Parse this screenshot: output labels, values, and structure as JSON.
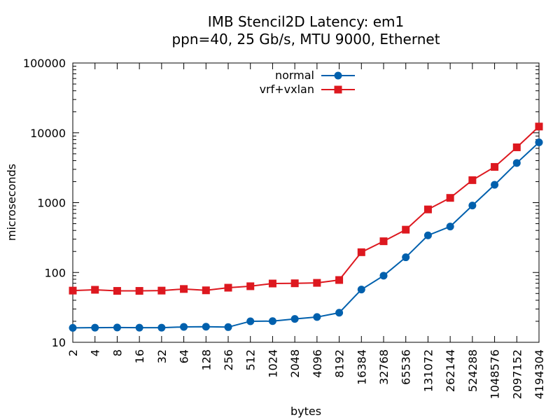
{
  "chart_data": {
    "type": "line",
    "title": "IMB Stencil2D Latency: em1",
    "subtitle": "ppn=40, 25 Gb/s, MTU 9000, Ethernet",
    "xlabel": "bytes",
    "ylabel": "microseconds",
    "xscale": "log",
    "yscale": "log",
    "xlim": [
      2,
      4194304
    ],
    "ylim": [
      10,
      100000
    ],
    "grid": false,
    "legend_position": "top-center",
    "x": [
      2,
      4,
      8,
      16,
      32,
      64,
      128,
      256,
      512,
      1024,
      2048,
      4096,
      8192,
      16384,
      32768,
      65536,
      131072,
      262144,
      524288,
      1048576,
      2097152,
      4194304
    ],
    "x_tick_labels": [
      "2",
      "4",
      "8",
      "16",
      "32",
      "64",
      "128",
      "256",
      "512",
      "1024",
      "2048",
      "4096",
      "8192",
      "16384",
      "32768",
      "65536",
      "131072",
      "262144",
      "524288",
      "1048576",
      "2097152",
      "4194304"
    ],
    "y_ticks": [
      10,
      100,
      1000,
      10000,
      100000
    ],
    "y_tick_labels": [
      "10",
      "100",
      "1000",
      "10000",
      "100000"
    ],
    "series": [
      {
        "name": "normal",
        "color": "#0060ad",
        "marker": "circle",
        "values": [
          16.1,
          16.2,
          16.3,
          16.2,
          16.2,
          16.6,
          16.7,
          16.5,
          20.0,
          20.1,
          21.6,
          23.0,
          26.5,
          57,
          90,
          165,
          340,
          455,
          910,
          1800,
          3700,
          7300
        ]
      },
      {
        "name": "vrf+vxlan",
        "color": "#dd181f",
        "marker": "square",
        "values": [
          55,
          56.5,
          54.5,
          54.5,
          55,
          58,
          55.5,
          60.5,
          63.5,
          69.5,
          70,
          71,
          78,
          195,
          280,
          410,
          800,
          1170,
          2100,
          3250,
          6200,
          12300
        ]
      }
    ]
  }
}
